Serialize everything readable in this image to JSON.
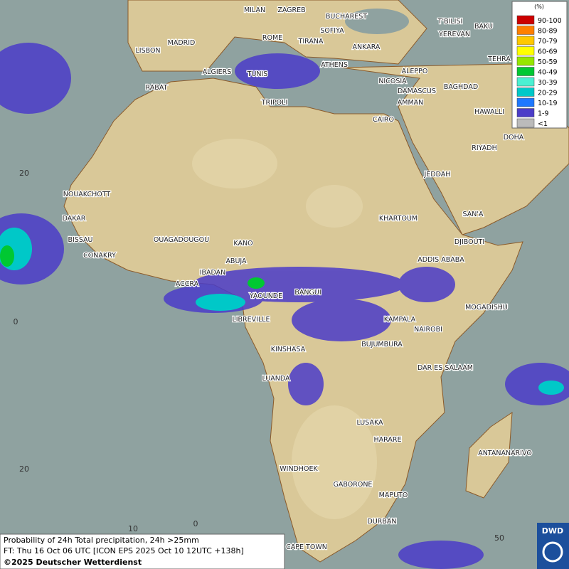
{
  "map": {
    "cities": [
      "MILAN",
      "ZAGREB",
      "BUCHAREST",
      "T'BILISI",
      "BAKU",
      "SOFIYA",
      "YEREVAN",
      "MADRID",
      "ROME",
      "TIRANA",
      "ANKARA",
      "LISBON",
      "TEHRA",
      "ATHENS",
      "ALGIERS",
      "TUNIS",
      "ALEPPO",
      "RABAT",
      "NICOSIA",
      "BAGHDAD",
      "DAMASCUS",
      "TRIPOLI",
      "AMMAN",
      "HAWALLI",
      "CAIRO",
      "DOHA",
      "RIYADH",
      "JEDDAH",
      "NOUAKCHOTT",
      "SAN'A",
      "KHARTOUM",
      "DAKAR",
      "BISSAU",
      "OUAGADOUGOU",
      "DJIBOUTI",
      "KANO",
      "CONAKRY",
      "ABUJA",
      "ADDIS ABABA",
      "IBADAN",
      "ACCRA",
      "BANGUI",
      "YAOUNDE",
      "MOGADISHU",
      "LIBREVILLE",
      "KAMPALA",
      "NAIROBI",
      "BUJUMBURA",
      "KINSHASA",
      "DAR ES SALAAM",
      "LUANDA",
      "LUSAKA",
      "HARARE",
      "ANTANANARIVO",
      "WINDHOEK",
      "GABORONE",
      "MAPUTO",
      "DURBAN",
      "CAPE TOWN"
    ],
    "lat_labels": [
      "20",
      "0",
      "20"
    ],
    "lon_labels": [
      "10",
      "0",
      "50"
    ]
  },
  "legend": {
    "title": "(%)",
    "items": [
      {
        "label": "90-100",
        "color": "#cc0000"
      },
      {
        "label": "80-89",
        "color": "#ff7f00"
      },
      {
        "label": "70-79",
        "color": "#ffc800"
      },
      {
        "label": "60-69",
        "color": "#ffff00"
      },
      {
        "label": "50-59",
        "color": "#96e600"
      },
      {
        "label": "40-49",
        "color": "#00c832"
      },
      {
        "label": "30-39",
        "color": "#4bf0d2"
      },
      {
        "label": "20-29",
        "color": "#00c8c8"
      },
      {
        "label": "10-19",
        "color": "#1e78ff"
      },
      {
        "label": "1-9",
        "color": "#4b3cc8"
      },
      {
        "label": "<1",
        "color": "#bbbbbb"
      }
    ]
  },
  "footer": {
    "line1": "Probability of 24h Total precipitation, 24h >25mm",
    "line2": "FT: Thu 16 Oct 06 UTC [ICON EPS 2025 Oct 10 12UTC +138h]",
    "line3": "©2025 Deutscher Wetterdienst"
  },
  "logo": "DWD"
}
